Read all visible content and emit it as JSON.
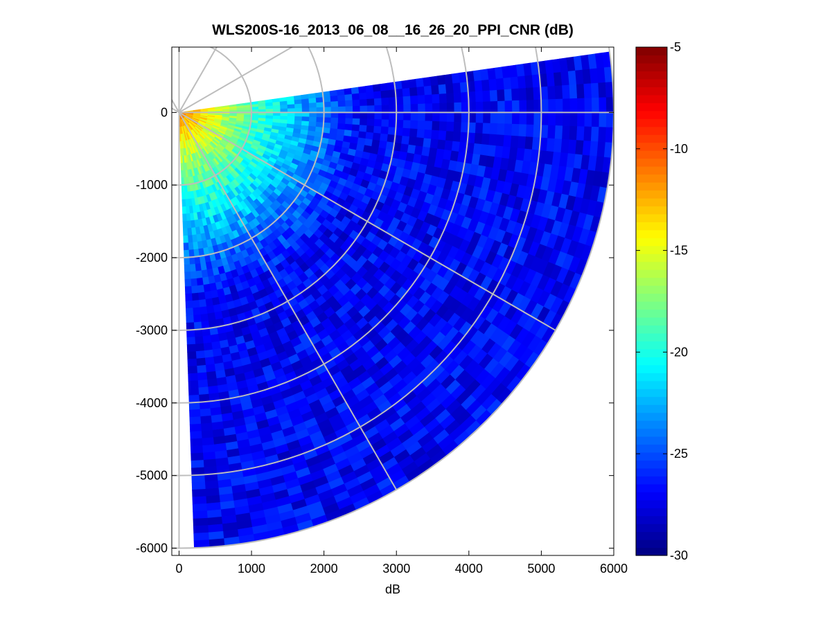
{
  "chart_data": {
    "type": "heatmap",
    "title": "WLS200S-16_2013_06_08__16_26_20_PPI_CNR (dB)",
    "xlabel": "dB",
    "ylabel": "",
    "xlim": [
      -100,
      6000
    ],
    "ylim": [
      -6100,
      900
    ],
    "x_ticks": [
      0,
      1000,
      2000,
      3000,
      4000,
      5000,
      6000
    ],
    "y_ticks": [
      0,
      -1000,
      -2000,
      -3000,
      -4000,
      -5000,
      -6000
    ],
    "x_tick_labels": [
      "0",
      "1000",
      "2000",
      "3000",
      "4000",
      "5000",
      "6000"
    ],
    "y_tick_labels": [
      "0",
      "-1000",
      "-2000",
      "-3000",
      "-4000",
      "-5000",
      "-6000"
    ],
    "sector": {
      "azimuth_start_deg": 8,
      "azimuth_end_deg": -88,
      "range_max": 6000,
      "range_bins": 60,
      "azimuth_bins": 48
    },
    "value_model": {
      "description_of_values": "CNR decreases with range from the origin",
      "near_value": -10,
      "far_value": -27
    },
    "polar_grid": {
      "rings": [
        1000,
        2000,
        3000,
        4000,
        5000,
        6000
      ],
      "spokes_deg": [
        90,
        60,
        30,
        0,
        -30,
        -60,
        -90,
        120,
        150
      ]
    },
    "colorbar": {
      "range": [
        -30,
        -5
      ],
      "ticks": [
        -5,
        -10,
        -15,
        -20,
        -25,
        -30
      ],
      "tick_labels": [
        "-5",
        "-10",
        "-15",
        "-20",
        "-25",
        "-30"
      ],
      "colormap": "jet"
    },
    "grid_color": "#bdbdbd"
  }
}
